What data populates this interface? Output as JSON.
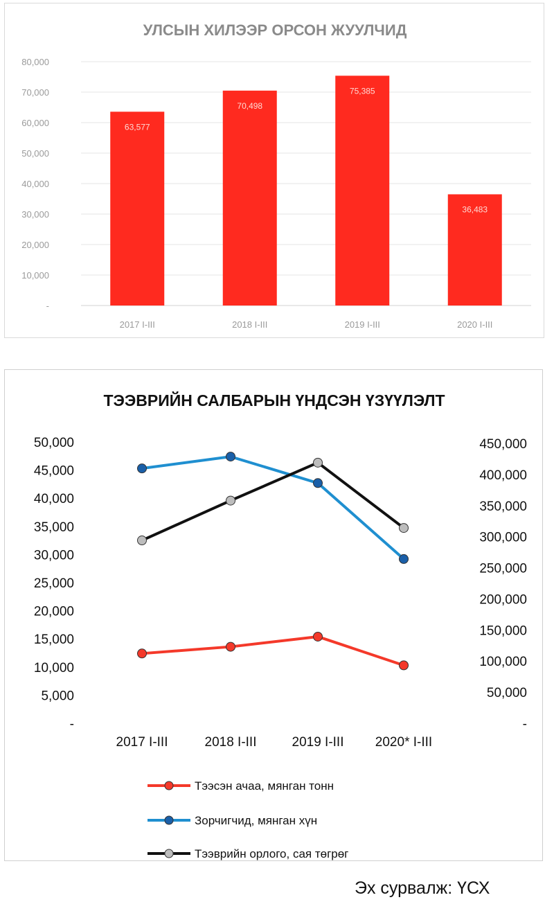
{
  "chart_data": [
    {
      "type": "bar",
      "title": "УЛСЫН ХИЛЭЭР ОРСОН ЖУУЛЧИД",
      "categories": [
        "2017 I-III",
        "2018 I-III",
        "2019 I-III",
        "2020 I-III"
      ],
      "values": [
        63577,
        70498,
        75385,
        36483
      ],
      "value_labels": [
        "63,577",
        "70,498",
        "75,385",
        "36,483"
      ],
      "y_ticks": [
        "-",
        "10,000",
        "20,000",
        "30,000",
        "40,000",
        "50,000",
        "60,000",
        "70,000",
        "80,000"
      ],
      "ylim": [
        0,
        80000
      ],
      "grid": true,
      "color": "#ff2a1f"
    },
    {
      "type": "line",
      "title": "ТЭЭВРИЙН САЛБАРЫН ҮНДСЭН ҮЗҮҮЛЭЛТ",
      "categories": [
        "2017 I-III",
        "2018 I-III",
        "2019 I-III",
        "2020* I-III"
      ],
      "ylim_left": [
        0,
        50000
      ],
      "ylim_right": [
        0,
        450000
      ],
      "y_ticks_left": [
        "-",
        "5,000",
        "10,000",
        "15,000",
        "20,000",
        "25,000",
        "30,000",
        "35,000",
        "40,000",
        "45,000",
        "50,000"
      ],
      "y_ticks_right": [
        "-",
        "50,000",
        "100,000",
        "150,000",
        "200,000",
        "250,000",
        "300,000",
        "350,000",
        "400,000",
        "450,000"
      ],
      "legend_position": "bottom",
      "series": [
        {
          "name": "Тээсэн ачаа, мянган тонн",
          "axis": "left",
          "values": [
            12400,
            13600,
            15400,
            10300
          ],
          "color": "#f4392a",
          "marker_color": "#f4392a"
        },
        {
          "name": "Зорчигчид, мянган хүн",
          "axis": "left",
          "values": [
            45300,
            47400,
            42700,
            29200
          ],
          "color": "#1f8fd0",
          "marker_color": "#1a5fa8"
        },
        {
          "name": "Тээврийн орлого, сая төгрөг",
          "axis": "right",
          "values": [
            294000,
            358000,
            419000,
            314000
          ],
          "color": "#111111",
          "marker_color": "#bdbdbd"
        }
      ]
    }
  ],
  "source_note": "Эх сурвалж: ҮСХ"
}
